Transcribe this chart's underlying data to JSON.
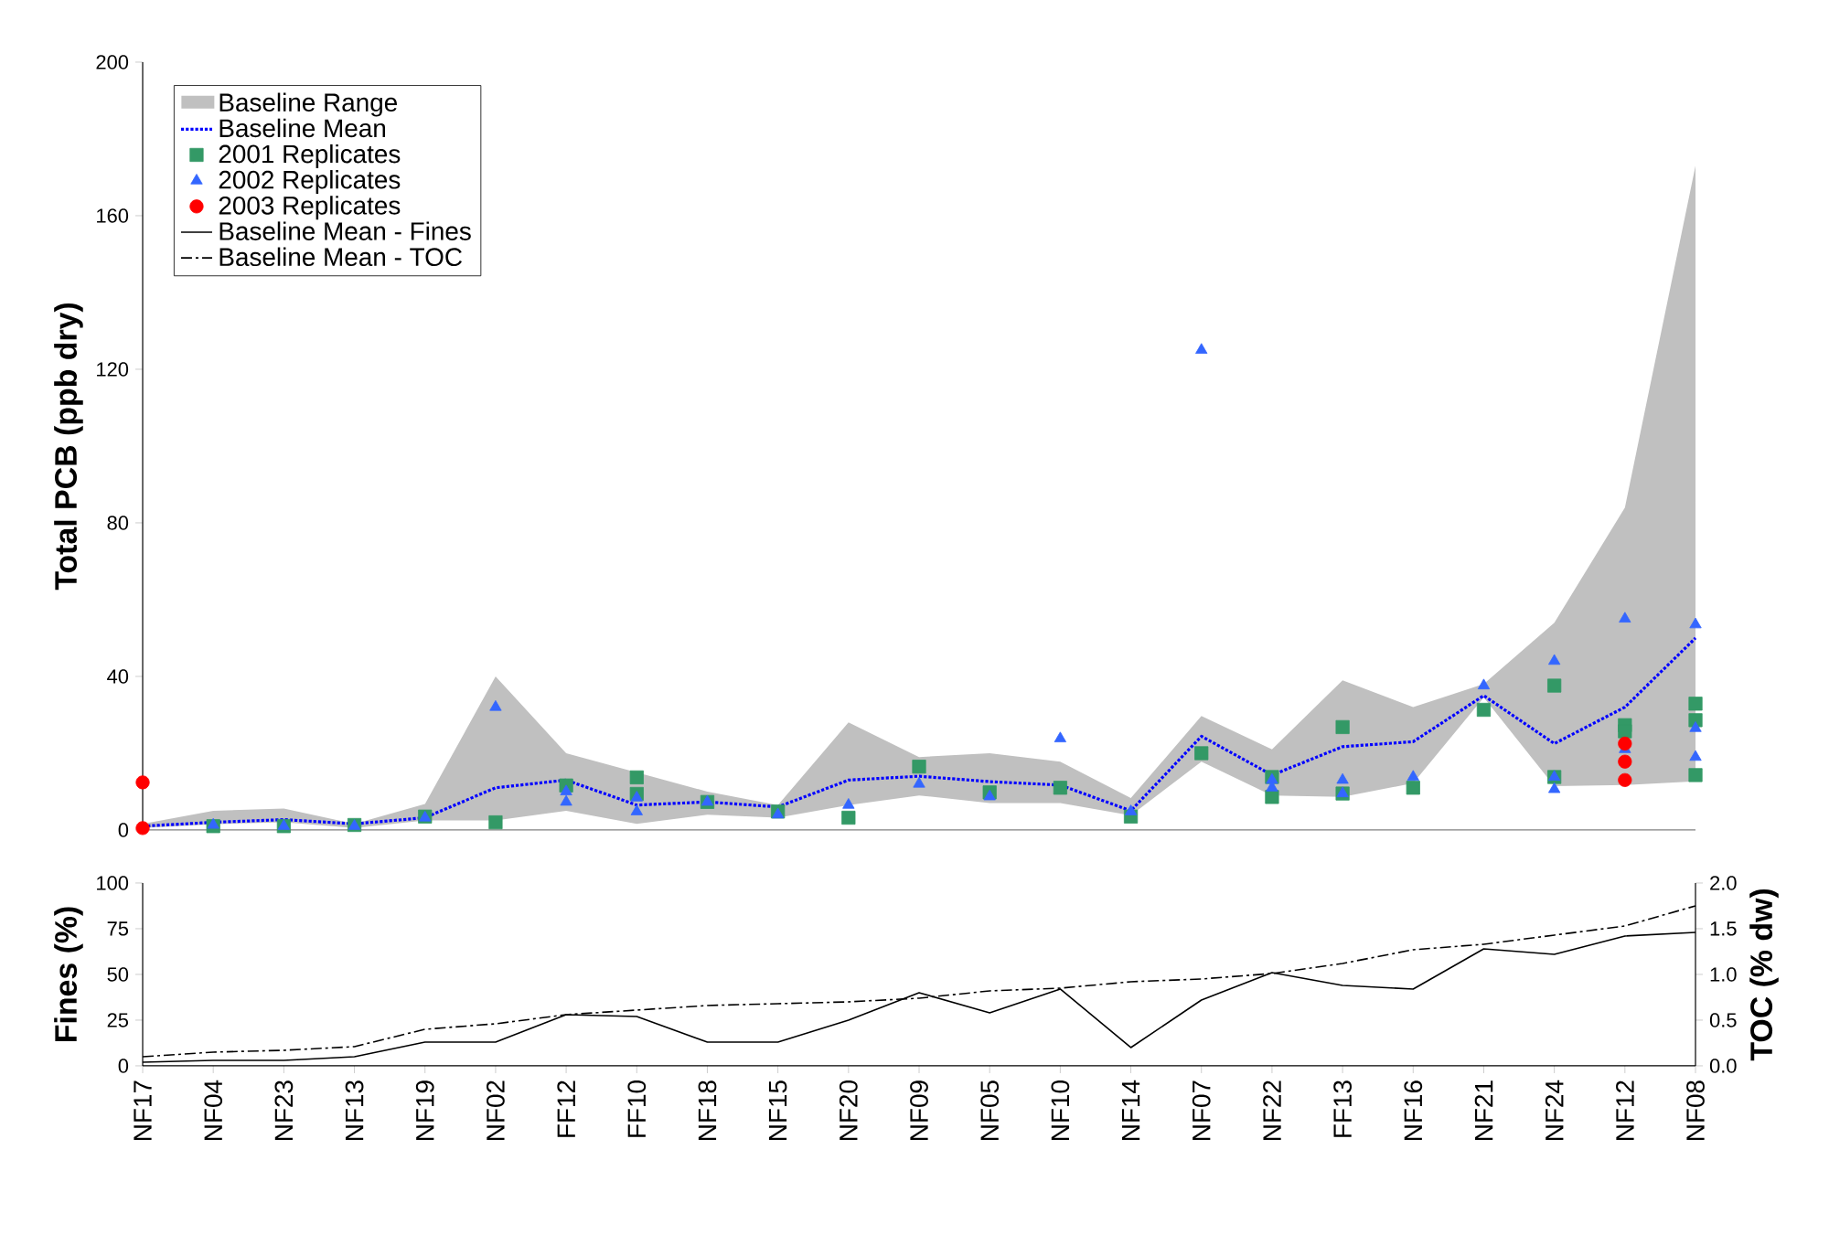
{
  "chart_data": [
    {
      "type": "line",
      "ylabel": "Total PCB (ppb dry)",
      "ylim": [
        0,
        200
      ],
      "yticks": [
        0,
        40,
        80,
        120,
        160,
        200
      ],
      "tick_labels": "y",
      "legend": "top left",
      "annotations": [
        "Baseline Range"
      ],
      "categories": [
        "NF17",
        "NF04",
        "NF23",
        "NF13",
        "NF19",
        "NF02",
        "FF12",
        "FF10",
        "NF18",
        "NF15",
        "NF20",
        "NF09",
        "NF05",
        "NF10",
        "NF14",
        "NF07",
        "NF22",
        "FF13",
        "NF16",
        "NF21",
        "NF24",
        "NF12",
        "NF08"
      ],
      "series": [
        {
          "name": "Baseline Mean",
          "type": "line",
          "color": "#0000ff",
          "line_style": "dotted",
          "values": [
            1,
            2,
            2.7,
            1.6,
            3.2,
            11,
            13,
            6.5,
            7.3,
            6,
            13,
            14,
            12.6,
            11.7,
            5,
            24.4,
            14.3,
            21.7,
            23,
            35,
            22.5,
            32,
            50
          ],
          "lower": [
            0.5,
            1.5,
            2,
            0.5,
            2.5,
            2.5,
            5,
            1.6,
            4,
            3.2,
            6.5,
            9,
            7,
            7,
            3.8,
            17.8,
            9,
            8.6,
            12.2,
            34.5,
            11.4,
            11.7,
            12.7
          ],
          "upper": [
            1.6,
            5,
            5.6,
            1.6,
            6.8,
            40,
            20,
            15,
            10,
            6.5,
            28,
            19,
            20,
            17.8,
            8.3,
            29.7,
            21,
            39,
            32,
            38,
            54,
            84,
            173
          ]
        },
        {
          "name": "2001 Replicates",
          "type": "scatter",
          "marker": "square",
          "color": "#339966",
          "x": [
            "NF04",
            "NF23",
            "NF13",
            "NF19",
            "NF02",
            "FF12",
            "FF10",
            "FF10",
            "NF18",
            "NF15",
            "NF20",
            "NF09",
            "NF05",
            "NF10",
            "NF14",
            "NF07",
            "NF22",
            "NF22",
            "FF13",
            "FF13",
            "NF16",
            "NF21",
            "NF24",
            "NF24",
            "NF12",
            "NF12",
            "NF08",
            "NF08",
            "NF08"
          ],
          "values": [
            1,
            1,
            1.3,
            3.5,
            2,
            11.6,
            13.7,
            9.4,
            7.3,
            4.8,
            3.2,
            16.5,
            9.8,
            11,
            3.5,
            20,
            13.8,
            8.6,
            26.8,
            9.5,
            11,
            31.3,
            37.6,
            13.8,
            27.3,
            25.7,
            32.9,
            28.6,
            14.3
          ]
        },
        {
          "name": "2002 Replicates",
          "type": "scatter",
          "marker": "triangle",
          "color": "#3366ff",
          "x": [
            "NF04",
            "NF23",
            "NF13",
            "NF19",
            "NF02",
            "FF12",
            "FF12",
            "FF10",
            "FF10",
            "NF18",
            "NF15",
            "NF20",
            "NF09",
            "NF05",
            "NF10",
            "NF14",
            "NF07",
            "NF22",
            "NF22",
            "FF13",
            "FF13",
            "NF16",
            "NF21",
            "NF24",
            "NF24",
            "NF24",
            "NF12",
            "NF12",
            "NF08",
            "NF08",
            "NF08"
          ],
          "values": [
            1.3,
            1,
            1,
            3.2,
            32,
            10,
            7.3,
            8.4,
            4.8,
            7.3,
            4,
            6.5,
            12,
            8.7,
            23.8,
            4.8,
            125,
            13,
            11,
            13,
            9.5,
            13.8,
            37.6,
            44,
            13.8,
            10.6,
            55,
            21,
            53.5,
            26.5,
            19
          ]
        },
        {
          "name": "2003 Replicates",
          "type": "scatter",
          "marker": "circle",
          "color": "#ff0000",
          "x": [
            "NF17",
            "NF17",
            "NF12",
            "NF12",
            "NF12"
          ],
          "values": [
            12.4,
            0.5,
            22.5,
            17.8,
            13
          ]
        }
      ]
    },
    {
      "type": "line",
      "ylabel": "Fines (%)",
      "y2label": "TOC (% dw)",
      "ylim": [
        0,
        100
      ],
      "yticks": [
        0,
        25,
        50,
        75,
        100
      ],
      "y2lim": [
        0,
        2
      ],
      "y2ticks": [
        {
          "value": 0,
          "label": "0.0"
        },
        {
          "value": 0.5,
          "label": "0.5"
        },
        {
          "value": 1,
          "label": "1.0"
        },
        {
          "value": 1.5,
          "label": "1.5"
        },
        {
          "value": 2,
          "label": "2.0"
        }
      ],
      "categories": [
        "NF17",
        "NF04",
        "NF23",
        "NF13",
        "NF19",
        "NF02",
        "FF12",
        "FF10",
        "NF18",
        "NF15",
        "NF20",
        "NF09",
        "NF05",
        "NF10",
        "NF14",
        "NF07",
        "NF22",
        "FF13",
        "NF16",
        "NF21",
        "NF24",
        "NF12",
        "NF08"
      ],
      "series": [
        {
          "name": "Baseline Mean - Fines",
          "color": "#000000",
          "line_style": "solid",
          "values": [
            2,
            3,
            3,
            5,
            13,
            13,
            28,
            27,
            13,
            13,
            25,
            40,
            29,
            42,
            10,
            36,
            51,
            44,
            42,
            64,
            61,
            71,
            73
          ]
        },
        {
          "name": "Baseline Mean - TOC",
          "color": "#000000",
          "line_style": "dashdot",
          "axis": "y2",
          "values": [
            0.1,
            0.15,
            0.17,
            0.21,
            0.4,
            0.46,
            0.56,
            0.61,
            0.66,
            0.68,
            0.7,
            0.74,
            0.82,
            0.85,
            0.92,
            0.95,
            1.01,
            1.12,
            1.27,
            1.33,
            1.43,
            1.53,
            1.75
          ]
        }
      ]
    }
  ]
}
